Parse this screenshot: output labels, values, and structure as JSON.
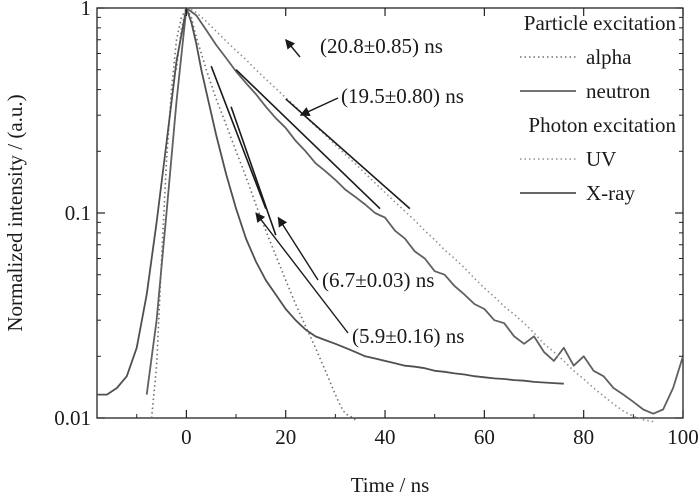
{
  "chart_data": {
    "type": "line",
    "xlabel": "Time / ns",
    "ylabel": "Normalized intensity / (a.u.)",
    "xlim": [
      -18,
      100
    ],
    "ylim": [
      0.01,
      1
    ],
    "yscale": "log",
    "x_ticks": [
      0,
      20,
      40,
      60,
      80,
      100
    ],
    "x_tick_labels": [
      "0",
      "20",
      "40",
      "60",
      "80",
      "100"
    ],
    "y_ticks": [
      0.01,
      0.1,
      1
    ],
    "y_tick_labels": [
      "0.01",
      "0.1",
      "1"
    ],
    "legend": {
      "placement": "top-right",
      "groups": [
        {
          "heading": "Particle excitation",
          "entries": [
            {
              "label": "alpha",
              "style": "dotted"
            },
            {
              "label": "neutron",
              "style": "solid"
            }
          ]
        },
        {
          "heading": "Photon excitation",
          "entries": [
            {
              "label": "UV",
              "style": "dotted"
            },
            {
              "label": "X-ray",
              "style": "solid"
            }
          ]
        }
      ]
    },
    "series": [
      {
        "name": "alpha",
        "style": "dotted",
        "color": "#707070",
        "x": [
          -7,
          -6,
          -5,
          -4,
          -3,
          -2,
          -1,
          0,
          1,
          2,
          4,
          6,
          8,
          10,
          12,
          14,
          16,
          18,
          20,
          22,
          24,
          26,
          28,
          30,
          31,
          32,
          33,
          34
        ],
        "y": [
          0.01,
          0.018,
          0.06,
          0.18,
          0.4,
          0.7,
          0.9,
          1.0,
          0.9,
          0.72,
          0.5,
          0.36,
          0.27,
          0.2,
          0.15,
          0.11,
          0.082,
          0.062,
          0.047,
          0.036,
          0.028,
          0.022,
          0.017,
          0.013,
          0.0115,
          0.0105,
          0.0102,
          0.0098
        ]
      },
      {
        "name": "neutron",
        "style": "solid",
        "color": "#606060",
        "x": [
          -8,
          -6,
          -4,
          -2,
          0,
          2,
          4,
          6,
          8,
          10,
          12,
          14,
          16,
          18,
          20,
          22,
          24,
          26,
          28,
          30,
          32,
          34,
          36,
          38,
          40,
          42,
          44,
          46,
          48,
          50,
          52,
          54,
          56,
          58,
          60,
          62,
          64,
          66,
          68,
          70,
          72,
          74,
          76,
          78,
          80,
          82,
          84,
          86,
          88,
          90,
          92,
          94,
          96,
          98,
          100
        ],
        "y": [
          0.013,
          0.03,
          0.1,
          0.35,
          1.0,
          0.92,
          0.78,
          0.66,
          0.57,
          0.49,
          0.43,
          0.38,
          0.33,
          0.29,
          0.26,
          0.225,
          0.2,
          0.175,
          0.16,
          0.145,
          0.13,
          0.12,
          0.11,
          0.1,
          0.095,
          0.082,
          0.075,
          0.065,
          0.06,
          0.052,
          0.05,
          0.044,
          0.04,
          0.036,
          0.034,
          0.03,
          0.029,
          0.025,
          0.023,
          0.025,
          0.021,
          0.019,
          0.022,
          0.018,
          0.02,
          0.017,
          0.016,
          0.014,
          0.013,
          0.012,
          0.011,
          0.0105,
          0.011,
          0.014,
          0.02
        ]
      },
      {
        "name": "UV",
        "style": "dotted",
        "color": "#909090",
        "x": [
          -2,
          -1,
          0,
          1,
          2,
          4,
          6,
          8,
          10,
          12,
          14,
          16,
          18,
          20,
          22,
          24,
          26,
          28,
          30,
          32,
          34,
          36,
          38,
          40,
          42,
          44,
          46,
          48,
          50,
          52,
          54,
          56,
          58,
          60,
          62,
          64,
          66,
          68,
          70,
          72,
          74,
          76,
          78,
          80,
          82,
          84,
          86,
          88,
          90,
          92,
          94
        ],
        "y": [
          0.5,
          0.8,
          1.0,
          0.98,
          0.95,
          0.86,
          0.77,
          0.69,
          0.62,
          0.56,
          0.5,
          0.45,
          0.405,
          0.365,
          0.33,
          0.295,
          0.265,
          0.24,
          0.215,
          0.193,
          0.174,
          0.156,
          0.14,
          0.126,
          0.113,
          0.102,
          0.092,
          0.082,
          0.074,
          0.066,
          0.06,
          0.054,
          0.048,
          0.043,
          0.039,
          0.035,
          0.032,
          0.029,
          0.026,
          0.023,
          0.021,
          0.019,
          0.017,
          0.0155,
          0.014,
          0.0128,
          0.0117,
          0.0108,
          0.0102,
          0.0098,
          0.0095
        ]
      },
      {
        "name": "X-ray",
        "style": "solid",
        "color": "#505050",
        "x": [
          -18,
          -16,
          -14,
          -12,
          -10,
          -8,
          -6,
          -4,
          -2,
          0,
          1,
          2,
          3,
          4,
          6,
          8,
          10,
          12,
          14,
          16,
          18,
          20,
          22,
          24,
          26,
          28,
          30,
          32,
          34,
          36,
          38,
          40,
          42,
          44,
          46,
          48,
          50,
          52,
          54,
          56,
          58,
          60,
          62,
          64,
          66,
          68,
          70,
          72,
          74,
          76
        ],
        "y": [
          0.013,
          0.013,
          0.014,
          0.016,
          0.022,
          0.04,
          0.09,
          0.22,
          0.55,
          1.0,
          0.85,
          0.67,
          0.5,
          0.39,
          0.24,
          0.155,
          0.105,
          0.075,
          0.058,
          0.047,
          0.04,
          0.034,
          0.03,
          0.027,
          0.025,
          0.024,
          0.023,
          0.022,
          0.021,
          0.02,
          0.0195,
          0.019,
          0.0185,
          0.018,
          0.0178,
          0.0175,
          0.017,
          0.0168,
          0.0165,
          0.0163,
          0.016,
          0.0158,
          0.0156,
          0.0155,
          0.0153,
          0.0152,
          0.015,
          0.0149,
          0.0148,
          0.0147
        ]
      }
    ],
    "fit_lines": [
      {
        "label": "(20.8±0.85) ns",
        "x": [
          20,
          45
        ],
        "y": [
          0.36,
          0.105
        ]
      },
      {
        "label": "(19.5±0.80) ns",
        "x": [
          10,
          39
        ],
        "y": [
          0.5,
          0.105
        ]
      },
      {
        "label": "(6.7±0.03) ns",
        "x": [
          5,
          16
        ],
        "y": [
          0.52,
          0.105
        ]
      },
      {
        "label": "(5.9±0.16) ns",
        "x": [
          9,
          18
        ],
        "y": [
          0.33,
          0.078
        ]
      }
    ],
    "annotations": [
      {
        "text": "(20.8±0.85) ns",
        "arrow_to": [
          20,
          0.7
        ]
      },
      {
        "text": "(19.5±0.80) ns",
        "arrow_to": [
          23,
          0.3
        ]
      },
      {
        "text": "(6.7±0.03) ns",
        "arrow_to": [
          18.5,
          0.095
        ]
      },
      {
        "text": "(5.9±0.16) ns",
        "arrow_to": [
          14,
          0.1
        ]
      }
    ],
    "grid": false
  }
}
